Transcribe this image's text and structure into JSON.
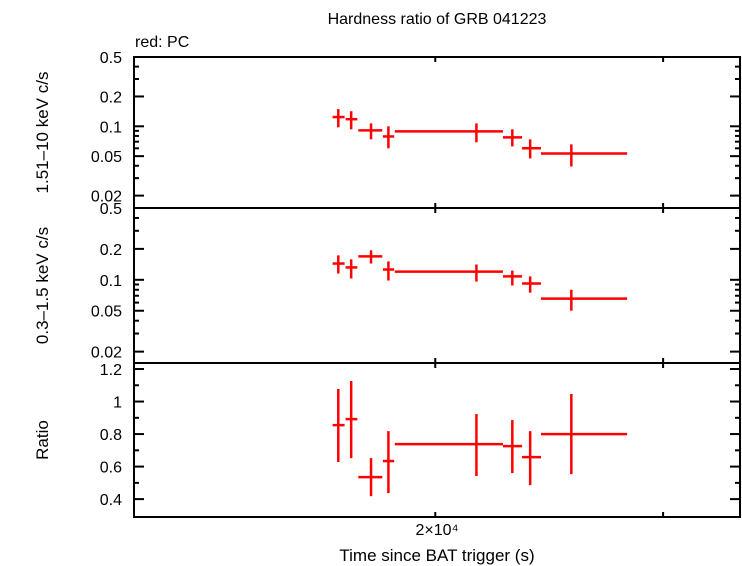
{
  "chart_data": {
    "type": "scatter",
    "title": "Hardness ratio of GRB 041223",
    "legend_note": "red: PC",
    "xlabel": "Time since BAT trigger (s)",
    "xscale": "log",
    "xlim": [
      11700,
      34400
    ],
    "x_ticks": [
      {
        "value": 20000,
        "label": "2×10⁴"
      },
      {
        "value": 30000,
        "label": ""
      }
    ],
    "series_color": "#ff0000",
    "x": [
      16830,
      17220,
      17840,
      18400,
      21520,
      22940,
      23680,
      25480
    ],
    "x_lo": [
      16660,
      17050,
      17440,
      18220,
      18610,
      22560,
      23340,
      24140
    ],
    "x_hi": [
      17020,
      17410,
      18200,
      18590,
      22560,
      23340,
      24140,
      28140
    ],
    "panels": [
      {
        "ylabel": "1.51–10 keV c/s",
        "yscale": "log",
        "ylim": [
          0.015,
          0.5
        ],
        "ytick_labels": [
          "0.5",
          "0.2",
          "0.1",
          "0.05",
          "0.02"
        ],
        "y": [
          0.124,
          0.118,
          0.091,
          0.079,
          0.089,
          0.0774,
          0.06,
          0.0532
        ],
        "y_lo": [
          0.0977,
          0.0933,
          0.0738,
          0.06,
          0.069,
          0.0627,
          0.0474,
          0.0393
        ],
        "y_hi": [
          0.149,
          0.142,
          0.107,
          0.1,
          0.107,
          0.0933,
          0.0738,
          0.0657
        ]
      },
      {
        "ylabel": "0.3–1.5 keV c/s",
        "yscale": "log",
        "ylim": [
          0.0155,
          0.5
        ],
        "ytick_labels": [
          "0.5",
          "0.2",
          "0.1",
          "0.05",
          "0.02"
        ],
        "y": [
          0.144,
          0.132,
          0.169,
          0.126,
          0.12,
          0.108,
          0.092,
          0.0656
        ],
        "y_lo": [
          0.115,
          0.103,
          0.144,
          0.0984,
          0.0962,
          0.088,
          0.075,
          0.05
        ],
        "y_hi": [
          0.173,
          0.158,
          0.194,
          0.151,
          0.141,
          0.123,
          0.108,
          0.08
        ]
      },
      {
        "ylabel": "Ratio",
        "yscale": "linear",
        "ylim": [
          0.29,
          1.237
        ],
        "ytick_labels": [
          "1.2",
          "1",
          "0.8",
          "0.6",
          "0.4"
        ],
        "y": [
          0.855,
          0.892,
          0.535,
          0.634,
          0.738,
          0.726,
          0.658,
          0.8
        ],
        "y_lo": [
          0.628,
          0.652,
          0.418,
          0.437,
          0.542,
          0.56,
          0.486,
          0.554
        ],
        "y_hi": [
          1.077,
          1.126,
          0.652,
          0.818,
          0.923,
          0.886,
          0.818,
          1.046
        ]
      }
    ]
  }
}
